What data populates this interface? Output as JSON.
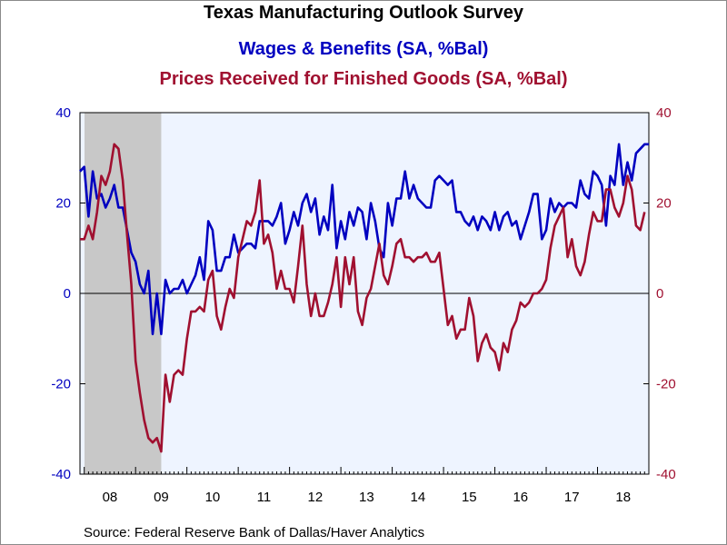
{
  "titles": {
    "main": "Texas Manufacturing Outlook Survey",
    "series1": "Wages & Benefits (SA, %Bal)",
    "series2": "Prices Received for Finished Goods (SA, %Bal)"
  },
  "source": "Source:  Federal Reserve Bank of Dallas/Haver Analytics",
  "colors": {
    "wages": "#0000c0",
    "prices": "#a01030",
    "plot_bg": "#eef4ff",
    "recession": "#c8c8c8"
  },
  "chart_data": {
    "type": "line",
    "title": "Texas Manufacturing Outlook Survey",
    "x_unit": "months since Jan 2008",
    "x_tick_labels": [
      "08",
      "09",
      "10",
      "11",
      "12",
      "13",
      "14",
      "15",
      "16",
      "17",
      "18"
    ],
    "ylim_left": [
      -40,
      40
    ],
    "ylim_right": [
      -40,
      40
    ],
    "y_ticks": [
      -40,
      -20,
      0,
      20,
      40
    ],
    "recession_shading": {
      "start": "2007-12",
      "end": "2009-06"
    },
    "series": [
      {
        "name": "Wages & Benefits (SA, %Bal)",
        "axis": "left",
        "start": "2007-12",
        "values": [
          27,
          28,
          17,
          27,
          21,
          22,
          19,
          21,
          24,
          19,
          19,
          14,
          9,
          7,
          2,
          0,
          5,
          -9,
          0,
          -9,
          3,
          0,
          1,
          1,
          3,
          0,
          2,
          4,
          8,
          3,
          16,
          14,
          5,
          5,
          8,
          8,
          13,
          9,
          10,
          11,
          11,
          10,
          16,
          16,
          16,
          15,
          17,
          20,
          11,
          14,
          18,
          15,
          20,
          22,
          18,
          21,
          13,
          17,
          14,
          24,
          10,
          16,
          12,
          18,
          15,
          19,
          18,
          12,
          20,
          16,
          10,
          8,
          20,
          15,
          21,
          21,
          27,
          21,
          24,
          21,
          20,
          19,
          19,
          25,
          26,
          25,
          24,
          25,
          18,
          18,
          16,
          15,
          17,
          14,
          17,
          16,
          14,
          18,
          14,
          17,
          18,
          15,
          16,
          12,
          15,
          18,
          22,
          22,
          12,
          14,
          21,
          18,
          20,
          19,
          20,
          20,
          19,
          25,
          22,
          21,
          27,
          26,
          24,
          15,
          26,
          24,
          33,
          24,
          29,
          25,
          31,
          32,
          33,
          33,
          33
        ]
      },
      {
        "name": "Prices Received for Finished Goods (SA, %Bal)",
        "axis": "right",
        "start": "2007-12",
        "values": [
          12,
          12,
          15,
          12,
          18,
          26,
          24,
          27,
          33,
          32,
          25,
          13,
          2,
          -15,
          -22,
          -28,
          -32,
          -33,
          -32,
          -35,
          -18,
          -24,
          -18,
          -17,
          -18,
          -10,
          -4,
          -4,
          -3,
          -4,
          3,
          5,
          -5,
          -8,
          -3,
          1,
          -1,
          8,
          12,
          16,
          15,
          18,
          25,
          11,
          13,
          9,
          1,
          5,
          1,
          1,
          -2,
          6,
          15,
          2,
          -5,
          0,
          -5,
          -5,
          -2,
          2,
          8,
          -3,
          8,
          2,
          8,
          -4,
          -7,
          -1,
          1,
          6,
          11,
          4,
          2,
          6,
          11,
          12,
          8,
          8,
          7,
          8,
          8,
          9,
          7,
          7,
          9,
          1,
          -7,
          -5,
          -10,
          -8,
          -8,
          -1,
          -5,
          -15,
          -11,
          -9,
          -12,
          -13,
          -17,
          -11,
          -13,
          -8,
          -6,
          -2,
          -3,
          -2,
          0,
          0,
          1,
          3,
          10,
          15,
          17,
          19,
          8,
          12,
          6,
          4,
          7,
          13,
          18,
          16,
          16,
          23,
          23,
          19,
          17,
          20,
          26,
          23,
          15,
          14,
          18
        ]
      }
    ]
  }
}
